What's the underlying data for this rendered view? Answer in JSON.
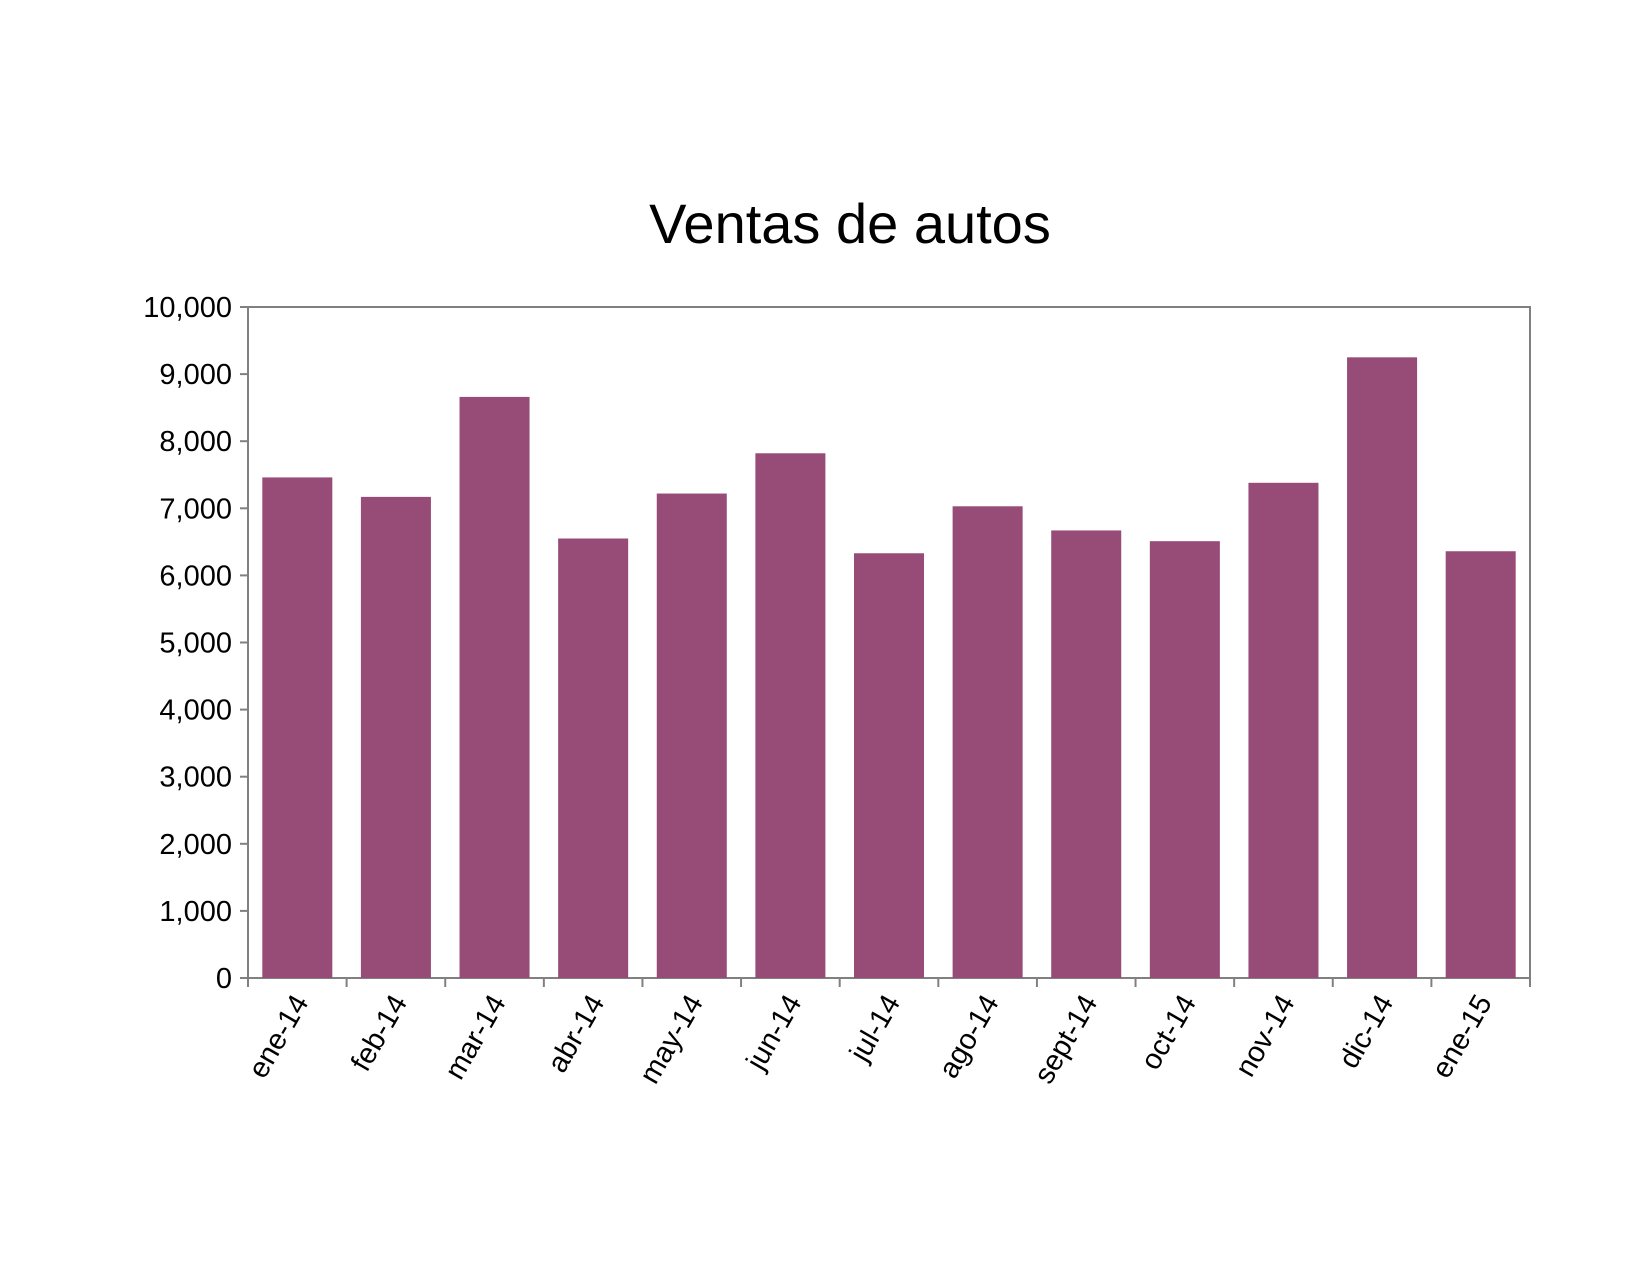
{
  "chart_data": {
    "type": "bar",
    "title": "Ventas de autos",
    "xlabel": "",
    "ylabel": "",
    "categories": [
      "ene-14",
      "feb-14",
      "mar-14",
      "abr-14",
      "may-14",
      "jun-14",
      "jul-14",
      "ago-14",
      "sept-14",
      "oct-14",
      "nov-14",
      "dic-14",
      "ene-15"
    ],
    "values": [
      7460,
      7170,
      8660,
      6550,
      7220,
      7820,
      6330,
      7030,
      6670,
      6510,
      7380,
      9250,
      6360
    ],
    "ylim": [
      0,
      10000
    ],
    "yticks": [
      "0",
      "1,000",
      "2,000",
      "3,000",
      "4,000",
      "5,000",
      "6,000",
      "7,000",
      "8,000",
      "9,000",
      "10,000"
    ],
    "grid": false,
    "legend": "none",
    "bar_color": "#964c76"
  }
}
